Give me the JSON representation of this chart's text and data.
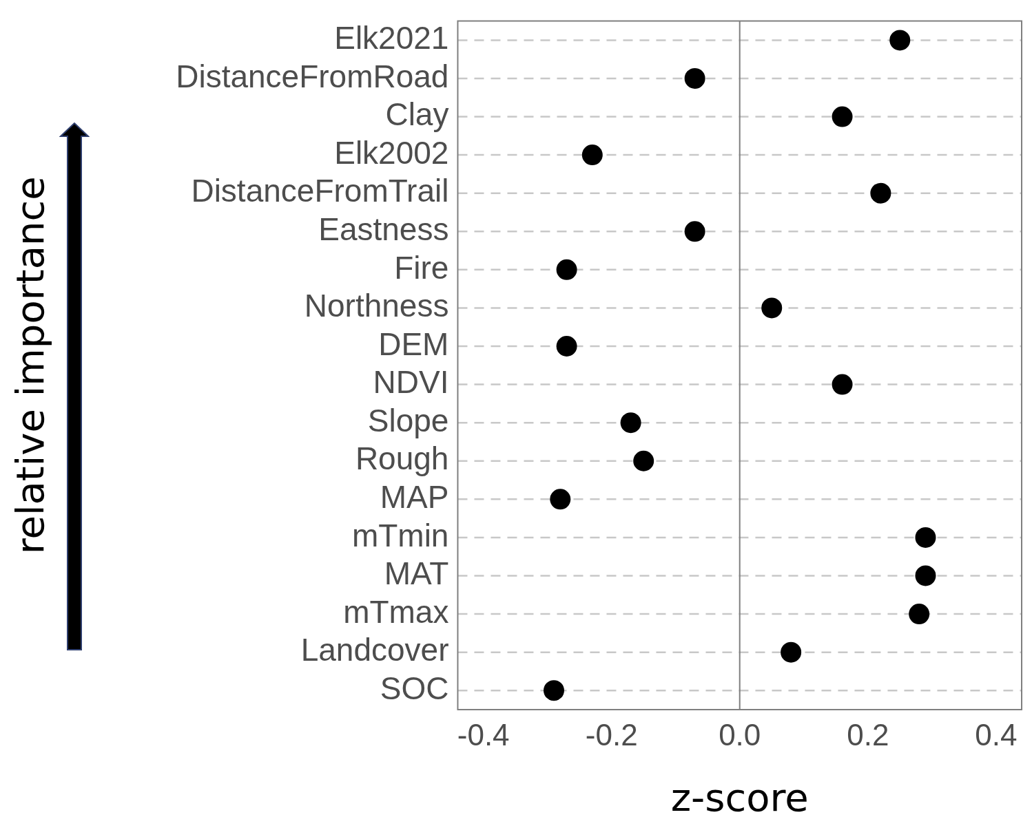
{
  "chart_data": {
    "type": "scatter",
    "xlabel": "z-score",
    "ylabel": "relative importance",
    "categories": [
      "Elk2021",
      "DistanceFromRoad",
      "Clay",
      "Elk2002",
      "DistanceFromTrail",
      "Eastness",
      "Fire",
      "Northness",
      "DEM",
      "NDVI",
      "Slope",
      "Rough",
      "MAP",
      "mTmin",
      "MAT",
      "mTmax",
      "Landcover",
      "SOC"
    ],
    "values": [
      0.25,
      -0.07,
      0.16,
      -0.23,
      0.22,
      -0.07,
      -0.27,
      0.05,
      -0.27,
      0.16,
      -0.17,
      -0.15,
      -0.28,
      0.29,
      0.29,
      0.28,
      0.08,
      -0.29
    ],
    "color": "#000000",
    "marker": "circle",
    "orientation": "horizontal",
    "xlim": [
      -0.44,
      0.44
    ],
    "xticks": [
      -0.4,
      -0.2,
      {
        "value": 0,
        "label": "0.0"
      },
      0.2,
      0.4
    ],
    "ref_lines": [
      {
        "axis": "x",
        "value": 0,
        "color": "#7f7f7f"
      }
    ],
    "grid": "y",
    "legend": false
  }
}
